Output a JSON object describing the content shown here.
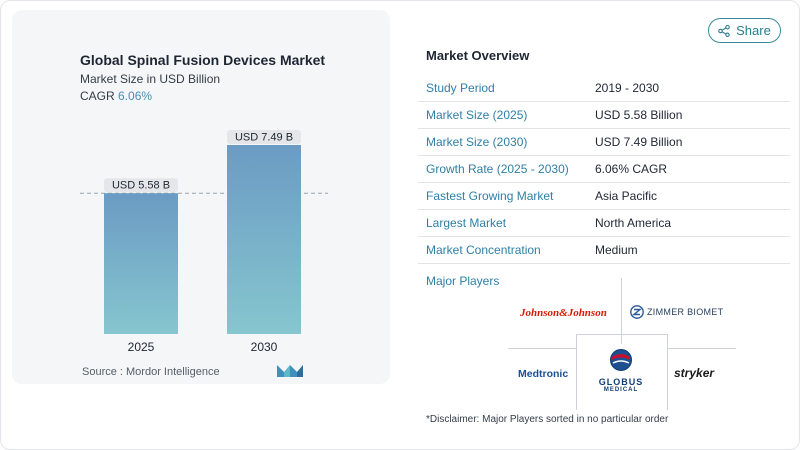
{
  "chart": {
    "title": "Global Spinal Fusion Devices Market",
    "subtitle": "Market Size in USD Billion",
    "cagr_label": "CAGR",
    "cagr_value": "6.06%",
    "source": "Source :  Mordor Intelligence"
  },
  "chart_data": {
    "type": "bar",
    "title": "Global Spinal Fusion Devices Market",
    "ylabel": "Market Size in USD Billion",
    "categories": [
      "2025",
      "2030"
    ],
    "values": [
      5.58,
      7.49
    ],
    "data_labels": [
      "USD 5.58 B",
      "USD 7.49 B"
    ],
    "reference_line": 5.58,
    "ylim": [
      0,
      7.49
    ],
    "grid": false,
    "bar_color_top": "#6b9bc3",
    "bar_color_bottom": "#86c6cf"
  },
  "share": {
    "label": "Share"
  },
  "overview": {
    "title": "Market Overview",
    "rows": [
      {
        "label": "Study Period",
        "value": "2019 - 2030"
      },
      {
        "label": "Market Size (2025)",
        "value": "USD 5.58 Billion"
      },
      {
        "label": "Market Size (2030)",
        "value": "USD 7.49 Billion"
      },
      {
        "label": "Growth Rate (2025 - 2030)",
        "value": "6.06% CAGR"
      },
      {
        "label": "Fastest Growing Market",
        "value": "Asia Pacific"
      },
      {
        "label": "Largest Market",
        "value": "North America"
      },
      {
        "label": "Market Concentration",
        "value": "Medium"
      }
    ]
  },
  "players": {
    "title": "Major Players",
    "johnson": "Johnson&Johnson",
    "zimmer": "ZIMMER BIOMET",
    "medtronic": "Medtronic",
    "globus": "GLOBUS",
    "globus_sub": "MEDICAL",
    "stryker": "stryker"
  },
  "disclaimer": "*Disclaimer: Major Players sorted in no particular order",
  "colors": {
    "accent": "#2f7fa6",
    "share_border": "#3a8a9a"
  }
}
